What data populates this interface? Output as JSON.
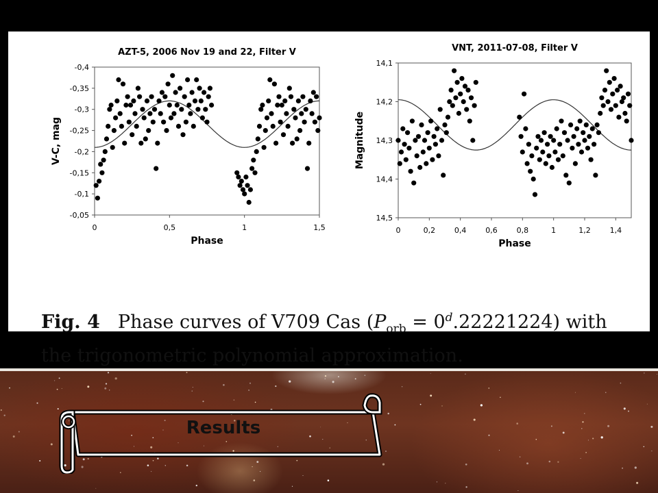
{
  "chart_data": [
    {
      "type": "scatter",
      "title": "AZT-5, 2006 Nov 19 and 22, Filter V",
      "xlabel": "Phase",
      "ylabel": "V-C, mag",
      "xlim": [
        0,
        1.5
      ],
      "ylim": [
        -0.4,
        -0.05
      ],
      "y_inverted": true,
      "grid": false,
      "xticks": [
        "0",
        "0,5",
        "1",
        "1,5"
      ],
      "yticks": [
        "-0,4",
        "-0,35",
        "-0,3",
        "-0,25",
        "-0,2",
        "-0,15",
        "-0,1",
        "-0,05"
      ],
      "fit_curve": {
        "kind": "sinusoid",
        "mean": -0.265,
        "amplitude": 0.055,
        "extremum_phase": 0.5,
        "period": 1
      },
      "points": [
        [
          0.01,
          -0.12
        ],
        [
          0.02,
          -0.09
        ],
        [
          0.03,
          -0.13
        ],
        [
          0.04,
          -0.17
        ],
        [
          0.05,
          -0.15
        ],
        [
          0.06,
          -0.18
        ],
        [
          0.07,
          -0.2
        ],
        [
          0.08,
          -0.23
        ],
        [
          0.09,
          -0.26
        ],
        [
          0.1,
          -0.3
        ],
        [
          0.11,
          -0.31
        ],
        [
          0.12,
          -0.21
        ],
        [
          0.13,
          -0.25
        ],
        [
          0.14,
          -0.28
        ],
        [
          0.15,
          -0.32
        ],
        [
          0.16,
          -0.37
        ],
        [
          0.17,
          -0.29
        ],
        [
          0.18,
          -0.26
        ],
        [
          0.19,
          -0.36
        ],
        [
          0.2,
          -0.22
        ],
        [
          0.21,
          -0.31
        ],
        [
          0.22,
          -0.33
        ],
        [
          0.23,
          -0.27
        ],
        [
          0.24,
          -0.31
        ],
        [
          0.25,
          -0.24
        ],
        [
          0.26,
          -0.32
        ],
        [
          0.27,
          -0.29
        ],
        [
          0.28,
          -0.26
        ],
        [
          0.29,
          -0.35
        ],
        [
          0.3,
          -0.33
        ],
        [
          0.31,
          -0.22
        ],
        [
          0.32,
          -0.3
        ],
        [
          0.33,
          -0.28
        ],
        [
          0.34,
          -0.23
        ],
        [
          0.35,
          -0.32
        ],
        [
          0.36,
          -0.25
        ],
        [
          0.37,
          -0.29
        ],
        [
          0.38,
          -0.33
        ],
        [
          0.39,
          -0.27
        ],
        [
          0.4,
          -0.3
        ],
        [
          0.41,
          -0.16
        ],
        [
          0.42,
          -0.22
        ],
        [
          0.43,
          -0.32
        ],
        [
          0.44,
          -0.29
        ],
        [
          0.45,
          -0.34
        ],
        [
          0.46,
          -0.27
        ],
        [
          0.47,
          -0.33
        ],
        [
          0.48,
          -0.25
        ],
        [
          0.49,
          -0.36
        ],
        [
          0.5,
          -0.31
        ],
        [
          0.51,
          -0.28
        ],
        [
          0.52,
          -0.38
        ],
        [
          0.53,
          -0.29
        ],
        [
          0.54,
          -0.34
        ],
        [
          0.55,
          -0.31
        ],
        [
          0.56,
          -0.26
        ],
        [
          0.57,
          -0.35
        ],
        [
          0.58,
          -0.3
        ],
        [
          0.59,
          -0.24
        ],
        [
          0.6,
          -0.33
        ],
        [
          0.61,
          -0.27
        ],
        [
          0.62,
          -0.37
        ],
        [
          0.63,
          -0.31
        ],
        [
          0.64,
          -0.29
        ],
        [
          0.65,
          -0.34
        ],
        [
          0.66,
          -0.26
        ],
        [
          0.67,
          -0.32
        ],
        [
          0.68,
          -0.37
        ],
        [
          0.69,
          -0.3
        ],
        [
          0.7,
          -0.35
        ],
        [
          0.71,
          -0.32
        ],
        [
          0.72,
          -0.28
        ],
        [
          0.73,
          -0.34
        ],
        [
          0.74,
          -0.3
        ],
        [
          0.75,
          -0.27
        ],
        [
          0.76,
          -0.33
        ],
        [
          0.77,
          -0.35
        ],
        [
          0.78,
          -0.31
        ],
        [
          0.95,
          -0.15
        ],
        [
          0.96,
          -0.14
        ],
        [
          0.97,
          -0.12
        ],
        [
          0.98,
          -0.13
        ],
        [
          0.99,
          -0.11
        ],
        [
          1.0,
          -0.1
        ],
        [
          1.01,
          -0.14
        ],
        [
          1.02,
          -0.12
        ],
        [
          1.03,
          -0.08
        ],
        [
          1.04,
          -0.11
        ],
        [
          1.05,
          -0.16
        ],
        [
          1.06,
          -0.18
        ],
        [
          1.07,
          -0.15
        ],
        [
          1.08,
          -0.2
        ],
        [
          1.09,
          -0.23
        ],
        [
          1.1,
          -0.26
        ],
        [
          1.11,
          -0.3
        ],
        [
          1.12,
          -0.31
        ],
        [
          1.13,
          -0.21
        ],
        [
          1.14,
          -0.25
        ],
        [
          1.15,
          -0.28
        ],
        [
          1.16,
          -0.32
        ],
        [
          1.17,
          -0.37
        ],
        [
          1.18,
          -0.29
        ],
        [
          1.19,
          -0.26
        ],
        [
          1.2,
          -0.36
        ],
        [
          1.21,
          -0.22
        ],
        [
          1.22,
          -0.31
        ],
        [
          1.23,
          -0.33
        ],
        [
          1.24,
          -0.27
        ],
        [
          1.25,
          -0.31
        ],
        [
          1.26,
          -0.24
        ],
        [
          1.27,
          -0.32
        ],
        [
          1.28,
          -0.29
        ],
        [
          1.29,
          -0.26
        ],
        [
          1.3,
          -0.35
        ],
        [
          1.31,
          -0.33
        ],
        [
          1.32,
          -0.22
        ],
        [
          1.33,
          -0.3
        ],
        [
          1.34,
          -0.28
        ],
        [
          1.35,
          -0.23
        ],
        [
          1.36,
          -0.32
        ],
        [
          1.37,
          -0.25
        ],
        [
          1.38,
          -0.29
        ],
        [
          1.39,
          -0.33
        ],
        [
          1.4,
          -0.27
        ],
        [
          1.41,
          -0.3
        ],
        [
          1.42,
          -0.16
        ],
        [
          1.43,
          -0.22
        ],
        [
          1.44,
          -0.32
        ],
        [
          1.45,
          -0.29
        ],
        [
          1.46,
          -0.34
        ],
        [
          1.47,
          -0.27
        ],
        [
          1.48,
          -0.33
        ],
        [
          1.49,
          -0.25
        ],
        [
          1.5,
          -0.28
        ]
      ]
    },
    {
      "type": "scatter",
      "title": "VNT, 2011-07-08, Filter V",
      "xlabel": "Phase",
      "ylabel": "Magnitude",
      "xlim": [
        0,
        1.5
      ],
      "ylim": [
        14.1,
        14.5
      ],
      "y_inverted": false,
      "grid": false,
      "xticks": [
        "0",
        "0,2",
        "0,4",
        "0,6",
        "0,8",
        "1",
        "1,2",
        "1,4"
      ],
      "yticks": [
        "14,1",
        "14,2",
        "14,3",
        "14,4",
        "14,5"
      ],
      "fit_curve": {
        "kind": "sinusoid",
        "mean": 14.26,
        "amplitude": 0.065,
        "extremum_phase": 0.5,
        "period": 1
      },
      "points": [
        [
          0.0,
          14.3
        ],
        [
          0.01,
          14.36
        ],
        [
          0.02,
          14.33
        ],
        [
          0.03,
          14.27
        ],
        [
          0.04,
          14.31
        ],
        [
          0.05,
          14.35
        ],
        [
          0.06,
          14.28
        ],
        [
          0.07,
          14.32
        ],
        [
          0.08,
          14.38
        ],
        [
          0.09,
          14.25
        ],
        [
          0.1,
          14.41
        ],
        [
          0.11,
          14.3
        ],
        [
          0.12,
          14.34
        ],
        [
          0.13,
          14.29
        ],
        [
          0.14,
          14.37
        ],
        [
          0.15,
          14.26
        ],
        [
          0.16,
          14.33
        ],
        [
          0.17,
          14.3
        ],
        [
          0.18,
          14.36
        ],
        [
          0.19,
          14.28
        ],
        [
          0.2,
          14.32
        ],
        [
          0.21,
          14.25
        ],
        [
          0.22,
          14.35
        ],
        [
          0.23,
          14.29
        ],
        [
          0.24,
          14.31
        ],
        [
          0.25,
          14.27
        ],
        [
          0.26,
          14.34
        ],
        [
          0.27,
          14.22
        ],
        [
          0.28,
          14.3
        ],
        [
          0.29,
          14.39
        ],
        [
          0.3,
          14.26
        ],
        [
          0.31,
          14.28
        ],
        [
          0.32,
          14.24
        ],
        [
          0.33,
          14.2
        ],
        [
          0.34,
          14.17
        ],
        [
          0.35,
          14.21
        ],
        [
          0.36,
          14.12
        ],
        [
          0.37,
          14.19
        ],
        [
          0.38,
          14.15
        ],
        [
          0.39,
          14.23
        ],
        [
          0.4,
          14.18
        ],
        [
          0.41,
          14.14
        ],
        [
          0.42,
          14.2
        ],
        [
          0.43,
          14.16
        ],
        [
          0.44,
          14.22
        ],
        [
          0.45,
          14.17
        ],
        [
          0.46,
          14.25
        ],
        [
          0.47,
          14.19
        ],
        [
          0.48,
          14.3
        ],
        [
          0.49,
          14.21
        ],
        [
          0.5,
          14.15
        ],
        [
          0.78,
          14.24
        ],
        [
          0.79,
          14.29
        ],
        [
          0.8,
          14.33
        ],
        [
          0.81,
          14.18
        ],
        [
          0.82,
          14.27
        ],
        [
          0.83,
          14.36
        ],
        [
          0.84,
          14.31
        ],
        [
          0.85,
          14.38
        ],
        [
          0.86,
          14.34
        ],
        [
          0.87,
          14.4
        ],
        [
          0.88,
          14.44
        ],
        [
          0.89,
          14.32
        ],
        [
          0.9,
          14.29
        ],
        [
          0.91,
          14.35
        ],
        [
          0.92,
          14.3
        ],
        [
          0.93,
          14.33
        ],
        [
          0.94,
          14.28
        ],
        [
          0.95,
          14.36
        ],
        [
          0.96,
          14.31
        ],
        [
          0.97,
          14.34
        ],
        [
          0.98,
          14.29
        ],
        [
          0.99,
          14.37
        ],
        [
          1.0,
          14.3
        ],
        [
          1.01,
          14.33
        ],
        [
          1.02,
          14.27
        ],
        [
          1.03,
          14.35
        ],
        [
          1.04,
          14.31
        ],
        [
          1.05,
          14.25
        ],
        [
          1.06,
          14.34
        ],
        [
          1.07,
          14.28
        ],
        [
          1.08,
          14.39
        ],
        [
          1.09,
          14.3
        ],
        [
          1.1,
          14.41
        ],
        [
          1.11,
          14.26
        ],
        [
          1.12,
          14.32
        ],
        [
          1.13,
          14.29
        ],
        [
          1.14,
          14.36
        ],
        [
          1.15,
          14.27
        ],
        [
          1.16,
          14.31
        ],
        [
          1.17,
          14.25
        ],
        [
          1.18,
          14.33
        ],
        [
          1.19,
          14.28
        ],
        [
          1.2,
          14.3
        ],
        [
          1.21,
          14.26
        ],
        [
          1.22,
          14.32
        ],
        [
          1.23,
          14.29
        ],
        [
          1.24,
          14.35
        ],
        [
          1.25,
          14.27
        ],
        [
          1.26,
          14.31
        ],
        [
          1.27,
          14.39
        ],
        [
          1.28,
          14.26
        ],
        [
          1.29,
          14.28
        ],
        [
          1.3,
          14.23
        ],
        [
          1.31,
          14.19
        ],
        [
          1.32,
          14.21
        ],
        [
          1.33,
          14.17
        ],
        [
          1.34,
          14.12
        ],
        [
          1.35,
          14.2
        ],
        [
          1.36,
          14.15
        ],
        [
          1.37,
          14.22
        ],
        [
          1.38,
          14.18
        ],
        [
          1.39,
          14.14
        ],
        [
          1.4,
          14.21
        ],
        [
          1.41,
          14.17
        ],
        [
          1.42,
          14.24
        ],
        [
          1.43,
          14.16
        ],
        [
          1.44,
          14.2
        ],
        [
          1.45,
          14.19
        ],
        [
          1.46,
          14.23
        ],
        [
          1.47,
          14.25
        ],
        [
          1.48,
          14.18
        ],
        [
          1.49,
          14.21
        ],
        [
          1.5,
          14.3
        ]
      ]
    }
  ],
  "caption": {
    "fig_label": "Fig. 4",
    "text_before": "Phase curves of V709 Cas (",
    "math_p": "P",
    "math_sub": "orb",
    "math_eq": " = 0",
    "math_sup": "d",
    "math_val": ".22221224) with",
    "line2": "the trigonometric polynomial approximation."
  },
  "banner": {
    "label": "Results"
  }
}
